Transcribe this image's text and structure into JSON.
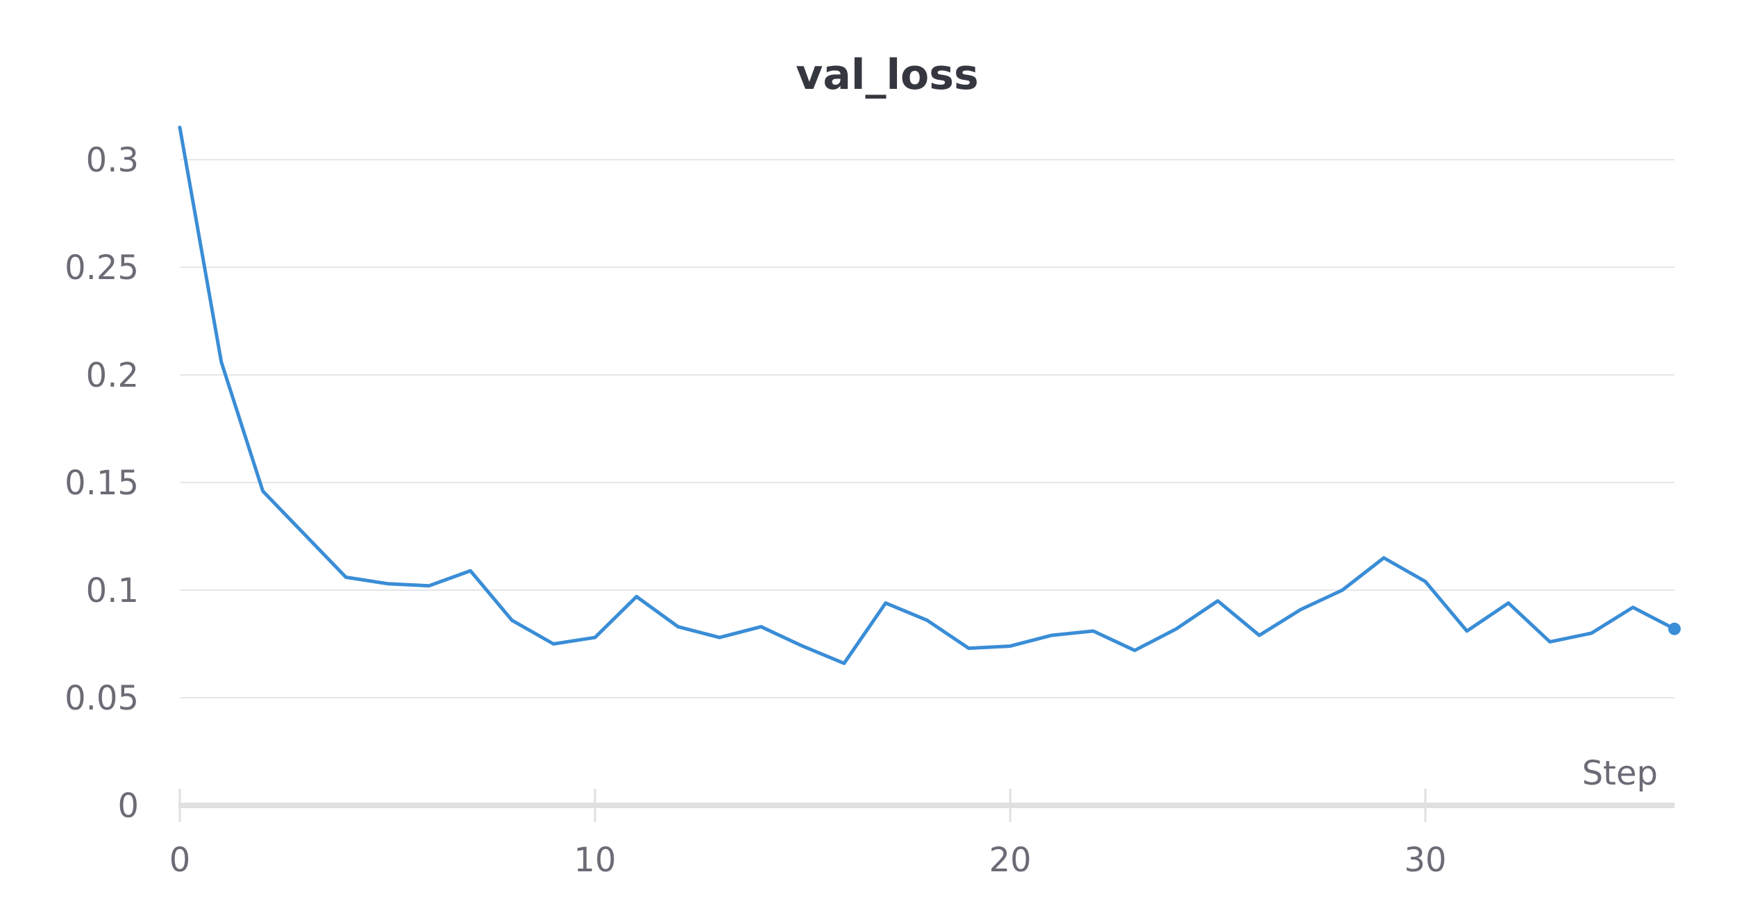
{
  "chart_data": {
    "type": "line",
    "title": "val_loss",
    "xlabel": "Step",
    "ylabel": "",
    "xlim": [
      0,
      36
    ],
    "ylim": [
      0,
      0.3
    ],
    "x_ticks": [
      0,
      10,
      20,
      30
    ],
    "y_ticks": [
      0,
      0.05,
      0.1,
      0.15,
      0.2,
      0.25,
      0.3
    ],
    "grid": true,
    "series": [
      {
        "color": "#3a8dd6",
        "x": [
          0,
          1,
          2,
          3,
          4,
          5,
          6,
          7,
          8,
          9,
          10,
          11,
          12,
          13,
          14,
          15,
          16,
          17,
          18,
          19,
          20,
          21,
          22,
          23,
          24,
          25,
          26,
          27,
          28,
          29,
          30,
          31,
          32,
          33,
          34,
          35,
          36
        ],
        "values": [
          0.315,
          0.206,
          0.146,
          0.126,
          0.106,
          0.103,
          0.102,
          0.109,
          0.086,
          0.075,
          0.078,
          0.097,
          0.083,
          0.078,
          0.083,
          0.074,
          0.066,
          0.094,
          0.086,
          0.073,
          0.074,
          0.079,
          0.081,
          0.072,
          0.082,
          0.095,
          0.079,
          0.091,
          0.1,
          0.115,
          0.104,
          0.081,
          0.094,
          0.076,
          0.08,
          0.092,
          0.082
        ]
      }
    ]
  }
}
